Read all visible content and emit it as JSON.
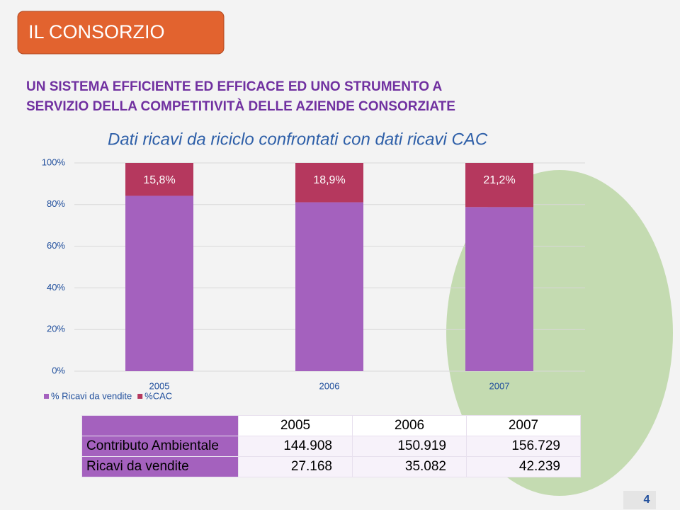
{
  "header": {
    "title": "IL CONSORZIO",
    "headline": [
      "UN SISTEMA EFFICIENTE ED EFFICACE ED UNO STRUMENTO A",
      "SERVIZIO DELLA COMPETITIVITÀ DELLE AZIENDE CONSORZIATE"
    ]
  },
  "chart_data": {
    "type": "stacked_bar",
    "title": "Dati ricavi da riciclo confrontati con dati ricavi CAC",
    "categories": [
      "2005",
      "2006",
      "2007"
    ],
    "series": [
      {
        "name": "% Ricavi da vendite",
        "color": "#a461be",
        "values": [
          84.2,
          81.1,
          78.8
        ]
      },
      {
        "name": "%CAC",
        "color": "#b5385e",
        "values": [
          15.8,
          18.9,
          21.2
        ],
        "value_labels": [
          "15,8%",
          "18,9%",
          "21,2%"
        ]
      }
    ],
    "ylim": [
      0,
      100
    ],
    "yticks": [
      {
        "value": 0,
        "label": "0%"
      },
      {
        "value": 20,
        "label": "20%"
      },
      {
        "value": 40,
        "label": "40%"
      },
      {
        "value": 60,
        "label": "60%"
      },
      {
        "value": 80,
        "label": "80%"
      },
      {
        "value": 100,
        "label": "100%"
      }
    ],
    "grid": true,
    "legend": "bottom-left"
  },
  "table": {
    "columns": [
      "2005",
      "2006",
      "2007"
    ],
    "rows": [
      {
        "label": "Contributo Ambientale",
        "values": [
          "144.908",
          "150.919",
          "156.729"
        ]
      },
      {
        "label": "Ricavi da vendite",
        "values": [
          "27.168",
          "35.082",
          "42.239"
        ]
      }
    ]
  },
  "page_number": "4"
}
